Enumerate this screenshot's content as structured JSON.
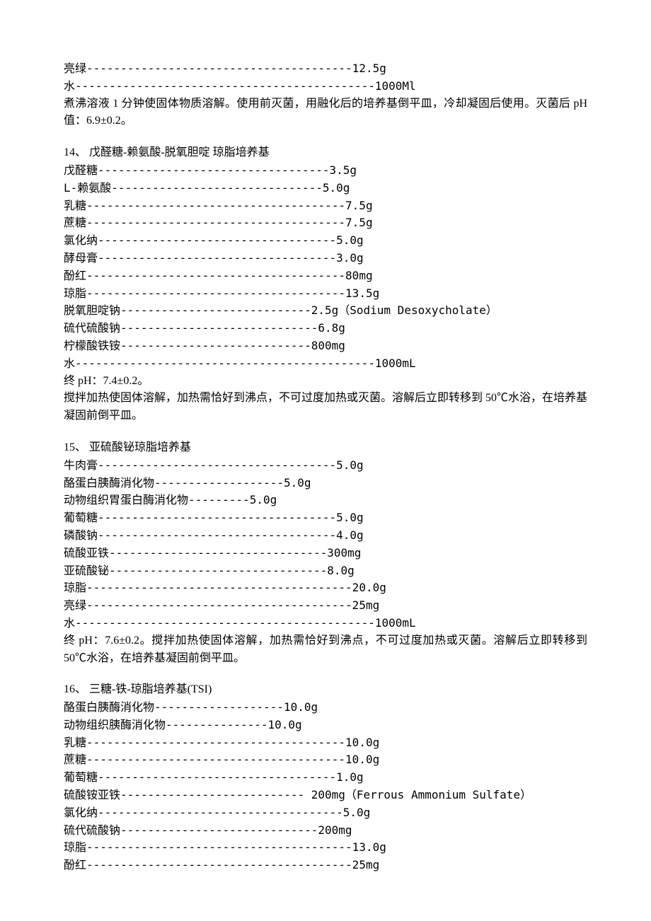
{
  "typography": {
    "font_family": "SimSun",
    "font_size_pt": 12,
    "line_height": 1.55,
    "text_color": "#000000",
    "background_color": "#ffffff"
  },
  "section13_tail": {
    "ingredients": [
      {
        "name": "亮绿",
        "dashes": "---------------------------------------",
        "amount": "12.5g"
      },
      {
        "name": "水",
        "dashes": "--------------------------------------------",
        "amount": "1000Ml"
      }
    ],
    "note": "煮沸溶液 1 分钟使固体物质溶解。使用前灭菌，用融化后的培养基倒平皿，冷却凝固后使用。灭菌后 pH 值：6.9±0.2。"
  },
  "section14": {
    "title": "14、  戊醛糖-赖氨酸-脱氧胆啶 琼脂培养基",
    "ingredients": [
      {
        "name": "戊醛糖",
        "dashes": "----------------------------------",
        "amount": "3.5g"
      },
      {
        "name": "L-赖氨酸",
        "dashes": "-------------------------------",
        "amount": "5.0g"
      },
      {
        "name": "乳糖",
        "dashes": "--------------------------------------",
        "amount": "7.5g"
      },
      {
        "name": "蔗糖",
        "dashes": "--------------------------------------",
        "amount": "7.5g"
      },
      {
        "name": "氯化纳",
        "dashes": "-----------------------------------",
        "amount": "5.0g"
      },
      {
        "name": "酵母膏",
        "dashes": "-----------------------------------",
        "amount": "3.0g"
      },
      {
        "name": "酚红",
        "dashes": "--------------------------------------",
        "amount": "80mg"
      },
      {
        "name": "琼脂",
        "dashes": "--------------------------------------",
        "amount": "13.5g"
      },
      {
        "name": "脱氧胆啶钠",
        "dashes": "----------------------------",
        "amount": "2.5g（Sodium Desoxycholate）"
      },
      {
        "name": "硫代硫酸钠",
        "dashes": "-----------------------------",
        "amount": "6.8g"
      },
      {
        "name": "柠檬酸铁铵",
        "dashes": "----------------------------",
        "amount": "800mg"
      },
      {
        "name": "水",
        "dashes": "--------------------------------------------",
        "amount": "1000mL"
      }
    ],
    "ph_line": "终 pH：7.4±0.2。",
    "note": "搅拌加热使固体溶解，加热需恰好到沸点，不可过度加热或灭菌。溶解后立即转移到 50℃水浴，在培养基凝固前倒平皿。"
  },
  "section15": {
    "title": "15、  亚硫酸铋琼脂培养基",
    "ingredients": [
      {
        "name": "牛肉膏",
        "dashes": "-----------------------------------",
        "amount": "5.0g"
      },
      {
        "name": "酪蛋白胰酶消化物",
        "dashes": "-------------------",
        "amount": "5.0g"
      },
      {
        "name": "动物组织胃蛋白酶消化物",
        "dashes": "---------",
        "amount": "5.0g"
      },
      {
        "name": "葡萄糖",
        "dashes": "-----------------------------------",
        "amount": "5.0g"
      },
      {
        "name": "磷酸钠",
        "dashes": "-----------------------------------",
        "amount": "4.0g"
      },
      {
        "name": "硫酸亚铁",
        "dashes": "--------------------------------",
        "amount": "300mg"
      },
      {
        "name": "亚硫酸铋",
        "dashes": "--------------------------------",
        "amount": "8.0g"
      },
      {
        "name": "琼脂",
        "dashes": "---------------------------------------",
        "amount": "20.0g"
      },
      {
        "name": "亮绿",
        "dashes": "---------------------------------------",
        "amount": "25mg"
      },
      {
        "name": "水",
        "dashes": "--------------------------------------------",
        "amount": "1000mL"
      }
    ],
    "note": "终 pH：7.6±0.2。搅拌加热使固体溶解，加热需恰好到沸点，不可过度加热或灭菌。溶解后立即转移到 50℃水浴，在培养基凝固前倒平皿。"
  },
  "section16": {
    "title": "16、  三糖-铁-琼脂培养基(TSI)",
    "ingredients": [
      {
        "name": "酪蛋白胰酶消化物",
        "dashes": "-------------------",
        "amount": "10.0g"
      },
      {
        "name": "动物组织胰酶消化物",
        "dashes": "---------------",
        "amount": "10.0g"
      },
      {
        "name": "乳糖",
        "dashes": "--------------------------------------",
        "amount": "10.0g"
      },
      {
        "name": "蔗糖",
        "dashes": "--------------------------------------",
        "amount": "10.0g"
      },
      {
        "name": "葡萄糖",
        "dashes": "-----------------------------------",
        "amount": "1.0g"
      },
      {
        "name": "硫酸铵亚铁",
        "dashes": "---------------------------",
        "amount": " 200mg（Ferrous Ammonium Sulfate）"
      },
      {
        "name": "氯化纳",
        "dashes": "------------------------------------",
        "amount": "5.0g"
      },
      {
        "name": "硫代硫酸钠",
        "dashes": "-----------------------------",
        "amount": "200mg"
      },
      {
        "name": "琼脂",
        "dashes": "---------------------------------------",
        "amount": "13.0g"
      },
      {
        "name": "酚红",
        "dashes": "---------------------------------------",
        "amount": "25mg"
      }
    ]
  }
}
